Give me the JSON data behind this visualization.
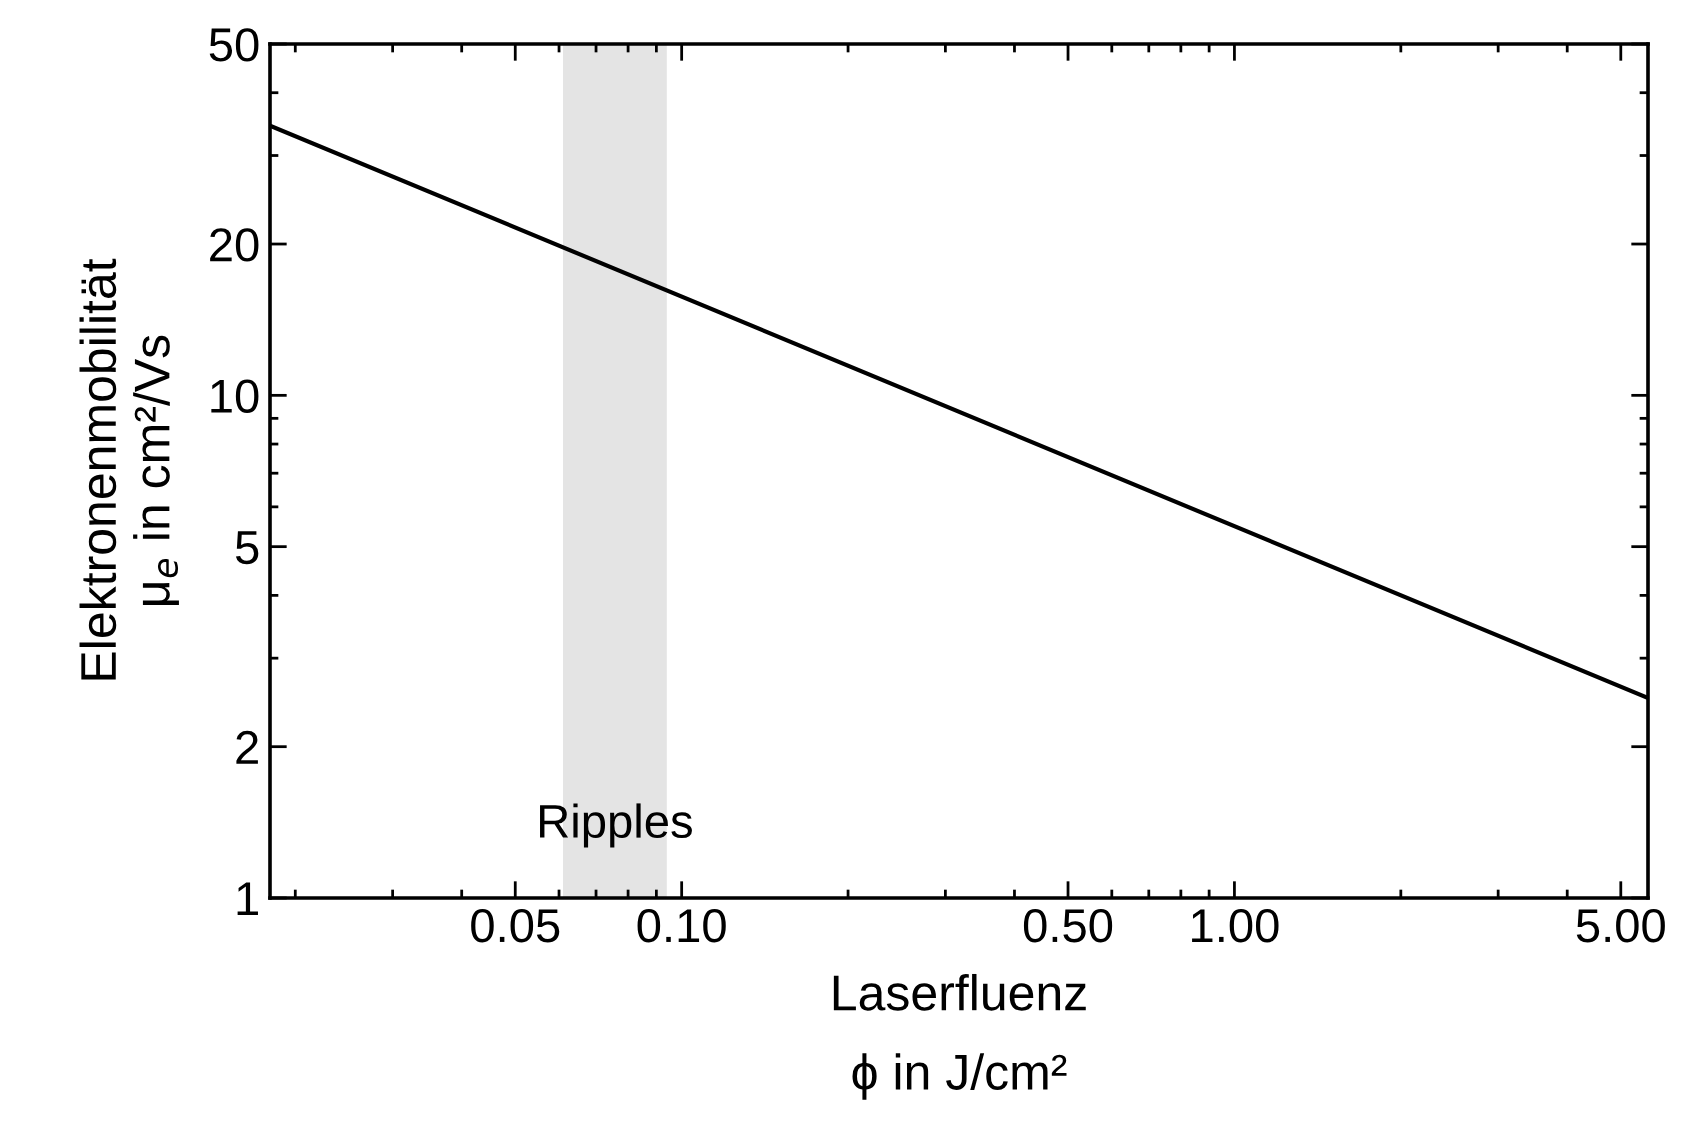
{
  "chart_data": {
    "type": "line",
    "xlabel": "Laserfluenz\nϕ in J/cm²",
    "ylabel": "Elektronenmobilität\nμ$_{e}$ in cm²/Vs",
    "x": [
      0.018,
      5.6
    ],
    "series": [
      {
        "color": "#000000",
        "values": [
          34.4,
          2.5
        ]
      }
    ],
    "log": "xy",
    "xlim": [
      0.018,
      5.6
    ],
    "ylim": [
      1,
      50
    ],
    "xticks": [
      {
        "value": 0.05,
        "label": "0.05"
      },
      {
        "value": 0.1,
        "label": "0.10"
      },
      {
        "value": 0.5,
        "label": "0.50"
      },
      {
        "value": 1,
        "label": "1.00"
      },
      {
        "value": 5,
        "label": "5.00"
      }
    ],
    "yticks": [
      1,
      2,
      5,
      10,
      20,
      50
    ],
    "bands": [
      {
        "axis": "x",
        "from": 0.061,
        "to": 0.094,
        "label": "Ripples",
        "color": "#e4e4e4"
      }
    ],
    "grid": false
  }
}
